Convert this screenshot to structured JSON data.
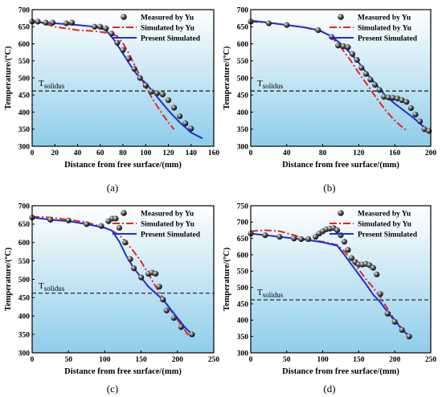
{
  "figure": {
    "legend": {
      "measured": "Measured by Yu",
      "simulated": "Simulated by Yu",
      "present": "Present Simulated"
    },
    "colors": {
      "measured": "#111111",
      "simulated": "#e8241f",
      "present": "#1f2fd6",
      "solidus": "#000000",
      "bg_top": "#ffffff",
      "bg_bottom": "#8ecdea"
    },
    "solidus_label": "T",
    "solidus_sub": "solidus",
    "xlabel": "Distance from free surface/(mm)",
    "ylabel": "Temperature/(ºC)"
  },
  "chart_data": [
    {
      "type": "line",
      "panel": "(a)",
      "xlim": [
        0,
        160
      ],
      "xticks": [
        0,
        20,
        40,
        60,
        80,
        100,
        120,
        140,
        160
      ],
      "ylim": [
        300,
        700
      ],
      "yticks": [
        300,
        350,
        400,
        450,
        500,
        550,
        600,
        650,
        700
      ],
      "solidus": 462,
      "legend_position": "top-right",
      "series": [
        {
          "name": "Measured by Yu",
          "style": "scatter",
          "x": [
            0,
            5,
            12,
            18,
            30,
            35,
            55,
            60,
            65,
            70,
            75,
            80,
            85,
            90,
            95,
            100,
            105,
            110,
            115,
            120,
            125,
            130,
            135,
            140
          ],
          "y": [
            665,
            665,
            662,
            662,
            660,
            662,
            650,
            650,
            645,
            630,
            603,
            582,
            557,
            527,
            500,
            478,
            460,
            455,
            452,
            435,
            413,
            388,
            367,
            352
          ]
        },
        {
          "name": "Simulated by Yu",
          "style": "dashdot",
          "x": [
            0,
            10,
            20,
            30,
            40,
            50,
            60,
            70,
            75,
            80,
            85,
            90,
            95,
            100,
            105,
            110,
            115,
            120,
            125
          ],
          "y": [
            665,
            660,
            650,
            645,
            640,
            638,
            635,
            630,
            622,
            602,
            573,
            540,
            505,
            475,
            445,
            418,
            393,
            370,
            350
          ]
        },
        {
          "name": "Present Simulated",
          "style": "solid",
          "x": [
            0,
            10,
            20,
            40,
            55,
            65,
            72,
            78,
            84,
            90,
            95,
            100,
            110,
            120,
            130,
            140,
            150
          ],
          "y": [
            665,
            662,
            660,
            655,
            650,
            640,
            612,
            582,
            550,
            520,
            500,
            485,
            445,
            405,
            370,
            340,
            323
          ]
        }
      ]
    },
    {
      "type": "line",
      "panel": "(b)",
      "xlim": [
        0,
        200
      ],
      "xticks": [
        0,
        40,
        80,
        120,
        160,
        200
      ],
      "ylim": [
        300,
        700
      ],
      "yticks": [
        300,
        350,
        400,
        450,
        500,
        550,
        600,
        650,
        700
      ],
      "solidus": 462,
      "legend_position": "top-right",
      "series": [
        {
          "name": "Measured by Yu",
          "style": "scatter",
          "x": [
            0,
            20,
            40,
            75,
            90,
            97,
            103,
            108,
            113,
            118,
            123,
            128,
            133,
            138,
            143,
            148,
            153,
            158,
            163,
            168,
            173,
            178,
            183,
            188,
            193,
            198
          ],
          "y": [
            665,
            660,
            655,
            640,
            620,
            595,
            593,
            590,
            570,
            553,
            530,
            512,
            495,
            480,
            465,
            445,
            443,
            442,
            440,
            435,
            430,
            412,
            393,
            373,
            350,
            345
          ]
        },
        {
          "name": "Simulated by Yu",
          "style": "dashdot",
          "x": [
            0,
            20,
            40,
            60,
            80,
            90,
            100,
            110,
            120,
            130,
            140,
            150,
            160,
            170,
            175
          ],
          "y": [
            665,
            662,
            655,
            648,
            635,
            620,
            590,
            555,
            515,
            478,
            440,
            405,
            375,
            352,
            345
          ]
        },
        {
          "name": "Present Simulated",
          "style": "solid",
          "x": [
            0,
            20,
            40,
            60,
            75,
            90,
            100,
            110,
            120,
            130,
            140,
            150,
            160,
            170,
            180,
            190,
            200
          ],
          "y": [
            668,
            662,
            655,
            648,
            640,
            622,
            600,
            575,
            545,
            510,
            478,
            447,
            425,
            405,
            385,
            362,
            340
          ]
        }
      ]
    },
    {
      "type": "line",
      "panel": "(c)",
      "xlim": [
        0,
        250
      ],
      "xticks": [
        0,
        50,
        100,
        150,
        200,
        250
      ],
      "ylim": [
        300,
        700
      ],
      "yticks": [
        300,
        350,
        400,
        450,
        500,
        550,
        600,
        650,
        700
      ],
      "solidus": 462,
      "legend_position": "top-right",
      "series": [
        {
          "name": "Measured by Yu",
          "style": "scatter",
          "x": [
            0,
            25,
            50,
            75,
            95,
            105,
            110,
            115,
            120,
            128,
            135,
            140,
            150,
            160,
            165,
            170,
            175,
            180,
            185,
            195,
            205,
            220
          ],
          "y": [
            668,
            662,
            660,
            650,
            645,
            658,
            665,
            665,
            640,
            600,
            555,
            530,
            505,
            515,
            518,
            515,
            480,
            445,
            415,
            395,
            370,
            350
          ]
        },
        {
          "name": "Simulated by Yu",
          "style": "dashdot",
          "x": [
            0,
            25,
            50,
            75,
            100,
            110,
            120,
            130,
            140,
            150,
            160,
            170,
            180,
            190,
            200,
            210,
            215
          ],
          "y": [
            670,
            668,
            662,
            655,
            640,
            632,
            620,
            600,
            575,
            548,
            515,
            480,
            450,
            418,
            390,
            362,
            348
          ]
        },
        {
          "name": "Present Simulated",
          "style": "solid",
          "x": [
            0,
            25,
            50,
            75,
            100,
            110,
            120,
            130,
            140,
            150,
            160,
            170,
            180,
            190,
            200,
            210,
            220
          ],
          "y": [
            668,
            662,
            658,
            650,
            640,
            632,
            602,
            562,
            530,
            505,
            480,
            462,
            445,
            420,
            395,
            370,
            350
          ]
        }
      ]
    },
    {
      "type": "line",
      "panel": "(d)",
      "xlim": [
        0,
        250
      ],
      "xticks": [
        0,
        50,
        100,
        150,
        200,
        250
      ],
      "ylim": [
        300,
        750
      ],
      "yticks": [
        300,
        350,
        400,
        450,
        500,
        550,
        600,
        650,
        700,
        750
      ],
      "solidus": 462,
      "legend_position": "top-right",
      "series": [
        {
          "name": "Measured by Yu",
          "style": "scatter",
          "x": [
            0,
            20,
            40,
            60,
            70,
            80,
            90,
            95,
            100,
            105,
            110,
            115,
            120,
            125,
            130,
            135,
            140,
            145,
            150,
            155,
            160,
            165,
            170,
            175,
            180,
            190,
            200,
            210,
            220
          ],
          "y": [
            665,
            660,
            655,
            650,
            648,
            648,
            655,
            665,
            672,
            678,
            680,
            682,
            675,
            660,
            640,
            615,
            590,
            578,
            570,
            570,
            572,
            568,
            560,
            540,
            480,
            420,
            395,
            370,
            350
          ]
        },
        {
          "name": "Simulated by Yu",
          "style": "dashdot",
          "x": [
            0,
            20,
            40,
            60,
            80,
            100,
            120,
            130,
            140,
            150,
            160,
            170,
            180,
            190,
            200,
            210,
            220
          ],
          "y": [
            672,
            675,
            672,
            660,
            645,
            640,
            630,
            610,
            585,
            555,
            525,
            500,
            470,
            435,
            400,
            375,
            352
          ]
        },
        {
          "name": "Present Simulated",
          "style": "solid",
          "x": [
            0,
            20,
            40,
            60,
            80,
            100,
            120,
            130,
            140,
            150,
            160,
            170,
            180,
            190,
            200,
            210,
            220
          ],
          "y": [
            665,
            660,
            655,
            650,
            645,
            638,
            628,
            600,
            570,
            540,
            510,
            478,
            455,
            425,
            398,
            372,
            350
          ]
        }
      ]
    }
  ]
}
